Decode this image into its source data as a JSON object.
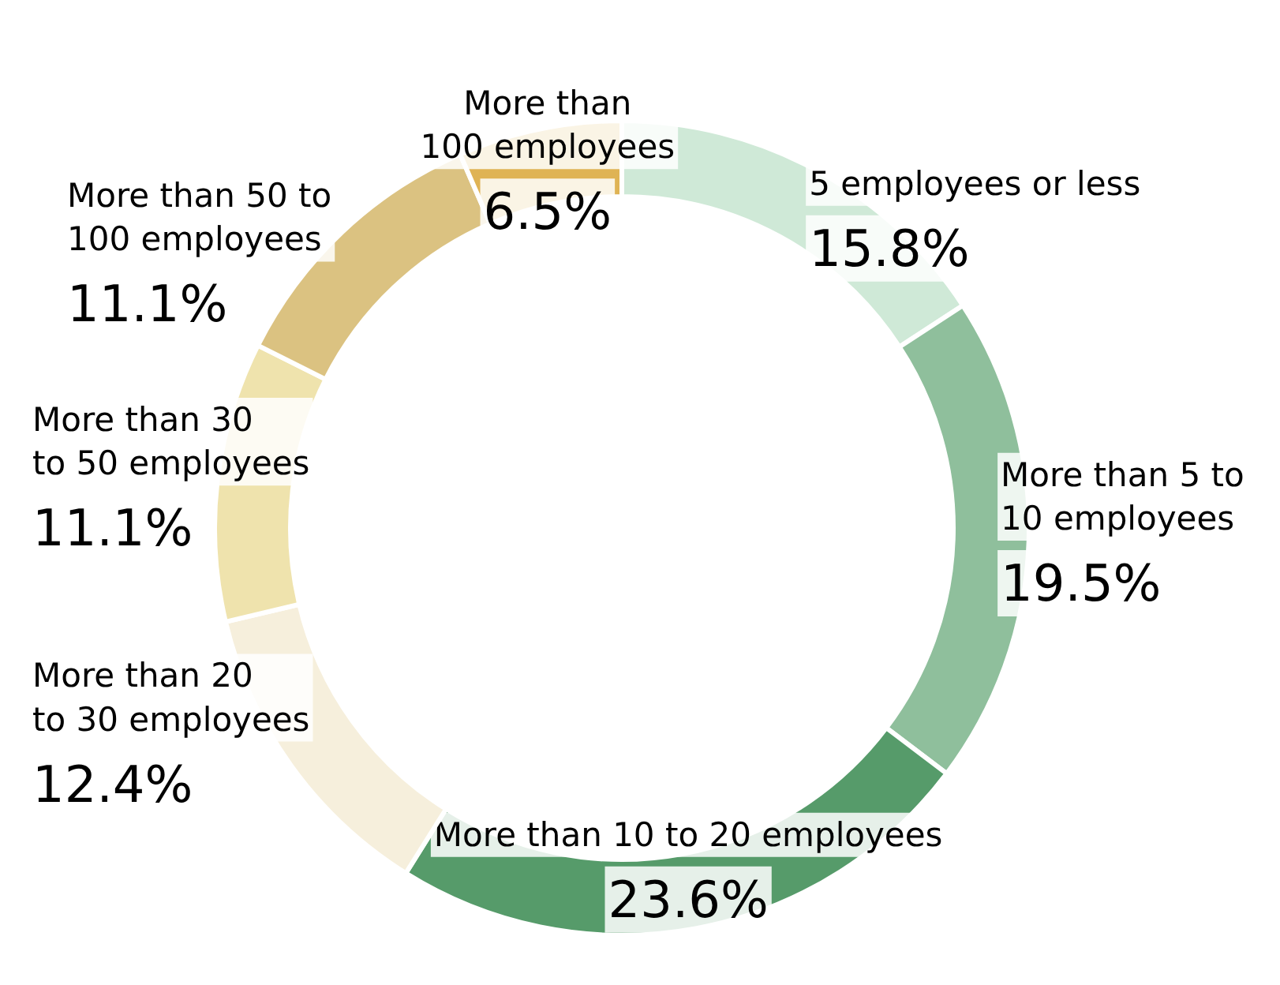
{
  "chart_data": {
    "type": "donut",
    "categories": [
      "5 employees or less",
      "More than 5 to\n10 employees",
      "More than 10 to 20 employees",
      "More than 20\nto 30 employees",
      "More than 30\nto 50 employees",
      "More than 50 to\n100 employees",
      "More than\n100 employees"
    ],
    "values": [
      15.8,
      19.5,
      23.6,
      12.4,
      11.1,
      11.1,
      6.5
    ],
    "value_labels": [
      "15.8%",
      "19.5%",
      "23.6%",
      "12.4%",
      "11.1%",
      "11.1%",
      "6.5%"
    ],
    "colors": [
      "#cfe9d7",
      "#8fbf9c",
      "#569b6a",
      "#f6efdc",
      "#efe3ad",
      "#dbc281",
      "#dfb354"
    ]
  }
}
